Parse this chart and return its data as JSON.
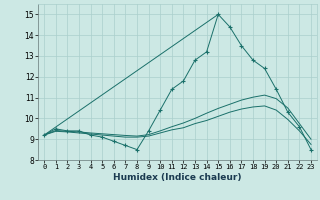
{
  "title": "",
  "xlabel": "Humidex (Indice chaleur)",
  "ylabel": "",
  "xlim": [
    -0.5,
    23.5
  ],
  "ylim": [
    8,
    15.5
  ],
  "xticks": [
    0,
    1,
    2,
    3,
    4,
    5,
    6,
    7,
    8,
    9,
    10,
    11,
    12,
    13,
    14,
    15,
    16,
    17,
    18,
    19,
    20,
    21,
    22,
    23
  ],
  "yticks": [
    8,
    9,
    10,
    11,
    12,
    13,
    14,
    15
  ],
  "bg_color": "#cce8e4",
  "grid_color": "#aacfcc",
  "line_color": "#1a706a",
  "lines": [
    {
      "x": [
        0,
        1,
        2,
        3,
        4,
        5,
        6,
        7,
        8,
        9,
        10,
        11,
        12,
        13,
        14,
        15,
        16,
        17,
        18,
        19,
        20,
        21,
        22,
        23
      ],
      "y": [
        9.2,
        9.5,
        9.4,
        9.4,
        9.2,
        9.1,
        8.9,
        8.7,
        8.5,
        9.4,
        10.4,
        11.4,
        11.8,
        12.8,
        13.2,
        15.0,
        14.4,
        13.5,
        12.8,
        12.4,
        11.4,
        10.3,
        9.6,
        8.5
      ],
      "marker": "+"
    },
    {
      "x": [
        0,
        1,
        2,
        3,
        4,
        5,
        6,
        7,
        8,
        9,
        10,
        11,
        12,
        13,
        14,
        15,
        16,
        17,
        18,
        19,
        20,
        21,
        22,
        23
      ],
      "y": [
        9.2,
        9.38,
        9.35,
        9.3,
        9.25,
        9.2,
        9.15,
        9.1,
        9.1,
        9.15,
        9.3,
        9.45,
        9.55,
        9.75,
        9.9,
        10.1,
        10.3,
        10.45,
        10.55,
        10.6,
        10.4,
        9.95,
        9.4,
        8.75
      ],
      "marker": null
    },
    {
      "x": [
        0,
        1,
        2,
        3,
        4,
        5,
        6,
        7,
        8,
        9,
        10,
        11,
        12,
        13,
        14,
        15,
        16,
        17,
        18,
        19,
        20,
        21,
        22,
        23
      ],
      "y": [
        9.2,
        9.42,
        9.38,
        9.35,
        9.3,
        9.26,
        9.22,
        9.18,
        9.15,
        9.22,
        9.4,
        9.6,
        9.78,
        10.0,
        10.25,
        10.48,
        10.68,
        10.88,
        11.02,
        11.12,
        10.95,
        10.5,
        9.75,
        9.0
      ],
      "marker": null
    },
    {
      "x": [
        0,
        15
      ],
      "y": [
        9.2,
        15.0
      ],
      "marker": null
    }
  ]
}
